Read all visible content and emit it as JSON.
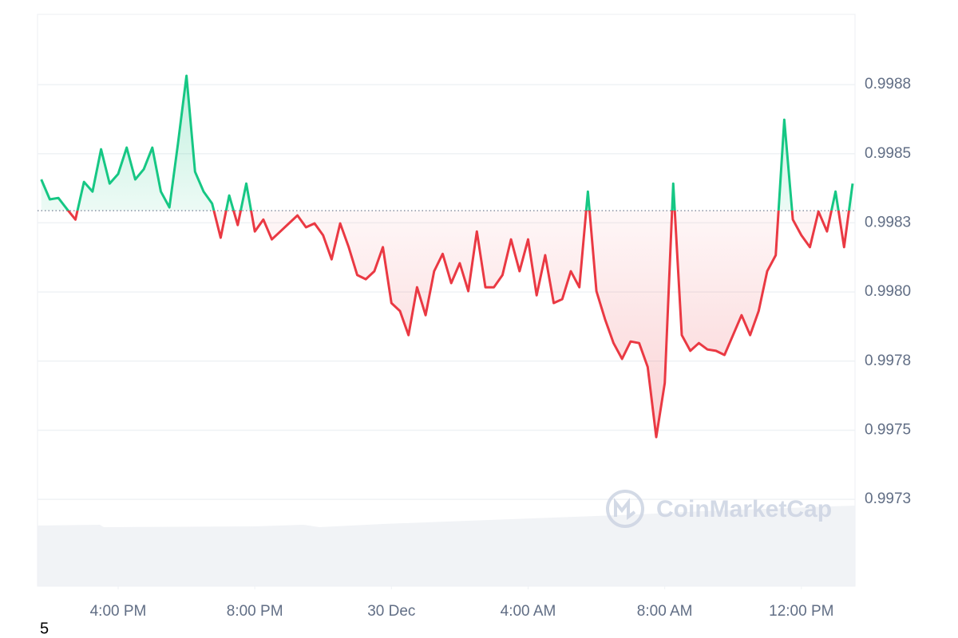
{
  "chart_data": {
    "type": "line",
    "watermark": "CoinMarketCap",
    "x": [
      13.75,
      14,
      14.25,
      14.5,
      14.75,
      15,
      15.25,
      15.5,
      15.75,
      16,
      16.25,
      16.5,
      16.75,
      17,
      17.25,
      17.5,
      17.75,
      18,
      18.25,
      18.5,
      18.75,
      19,
      19.25,
      19.5,
      19.75,
      20,
      20.25,
      20.5,
      20.75,
      21,
      21.25,
      21.5,
      21.75,
      22,
      22.25,
      22.5,
      22.75,
      23,
      23.25,
      23.5,
      23.75,
      24,
      24.25,
      24.5,
      24.75,
      25,
      25.25,
      25.5,
      25.75,
      26,
      26.25,
      26.5,
      26.75,
      27,
      27.25,
      27.5,
      27.75,
      28,
      28.25,
      28.5,
      28.75,
      29,
      29.25,
      29.5,
      29.75,
      30,
      30.25,
      30.5,
      30.75,
      31,
      31.25,
      31.5,
      31.75,
      32,
      32.25,
      32.5,
      32.75,
      33,
      33.25,
      33.5,
      33.75,
      34,
      34.25,
      34.5,
      34.75,
      35,
      35.25,
      35.5,
      35.75,
      36,
      36.25,
      36.5,
      36.75,
      37,
      37.25,
      37.5
    ],
    "values": [
      0.998407,
      0.998335,
      0.99834,
      0.9983,
      0.998262,
      0.998398,
      0.998363,
      0.998516,
      0.998392,
      0.998427,
      0.998522,
      0.998407,
      0.998444,
      0.998522,
      0.998363,
      0.998306,
      0.998536,
      0.998782,
      0.998435,
      0.998363,
      0.99832,
      0.998196,
      0.998349,
      0.998242,
      0.998392,
      0.998219,
      0.998262,
      0.99819,
      0.998219,
      0.998248,
      0.998277,
      0.998234,
      0.998248,
      0.998205,
      0.998118,
      0.998248,
      0.998162,
      0.998061,
      0.998046,
      0.998075,
      0.998162,
      0.99796,
      0.997931,
      0.997844,
      0.998017,
      0.997916,
      0.998075,
      0.998138,
      0.998032,
      0.998104,
      0.998003,
      0.998219,
      0.998017,
      0.998017,
      0.998061,
      0.99819,
      0.998075,
      0.99819,
      0.997988,
      0.998133,
      0.99796,
      0.997974,
      0.998075,
      0.998017,
      0.998363,
      0.998003,
      0.997902,
      0.997815,
      0.997758,
      0.997821,
      0.997815,
      0.997729,
      0.997475,
      0.997671,
      0.998392,
      0.997844,
      0.997787,
      0.997815,
      0.997792,
      0.997787,
      0.997772,
      0.997844,
      0.997916,
      0.997844,
      0.997931,
      0.998075,
      0.998133,
      0.998623,
      0.998262,
      0.998205,
      0.998162,
      0.998291,
      0.998219,
      0.998363,
      0.998162,
      0.998392
    ],
    "baseline": 0.998294,
    "up_color": "#16c784",
    "down_color": "#ea3943",
    "xlim": [
      13.64,
      37.57
    ],
    "xticks": [
      {
        "value": 16,
        "label": "4:00 PM"
      },
      {
        "value": 20,
        "label": "8:00 PM"
      },
      {
        "value": 24,
        "label": "30 Dec"
      },
      {
        "value": 28,
        "label": "4:00 AM"
      },
      {
        "value": 32,
        "label": "8:00 AM"
      },
      {
        "value": 36,
        "label": "12:00 PM"
      }
    ],
    "ylim": [
      0.996936,
      0.999004
    ],
    "yticks": [
      {
        "value": 0.99725,
        "label": "0.9973"
      },
      {
        "value": 0.9975,
        "label": "0.9975"
      },
      {
        "value": 0.99775,
        "label": "0.9978"
      },
      {
        "value": 0.998,
        "label": "0.9980"
      },
      {
        "value": 0.99825,
        "label": "0.9983"
      },
      {
        "value": 0.9985,
        "label": "0.9985"
      },
      {
        "value": 0.99875,
        "label": "0.9988"
      }
    ],
    "grid": true
  },
  "page": {
    "footnote": "5"
  }
}
